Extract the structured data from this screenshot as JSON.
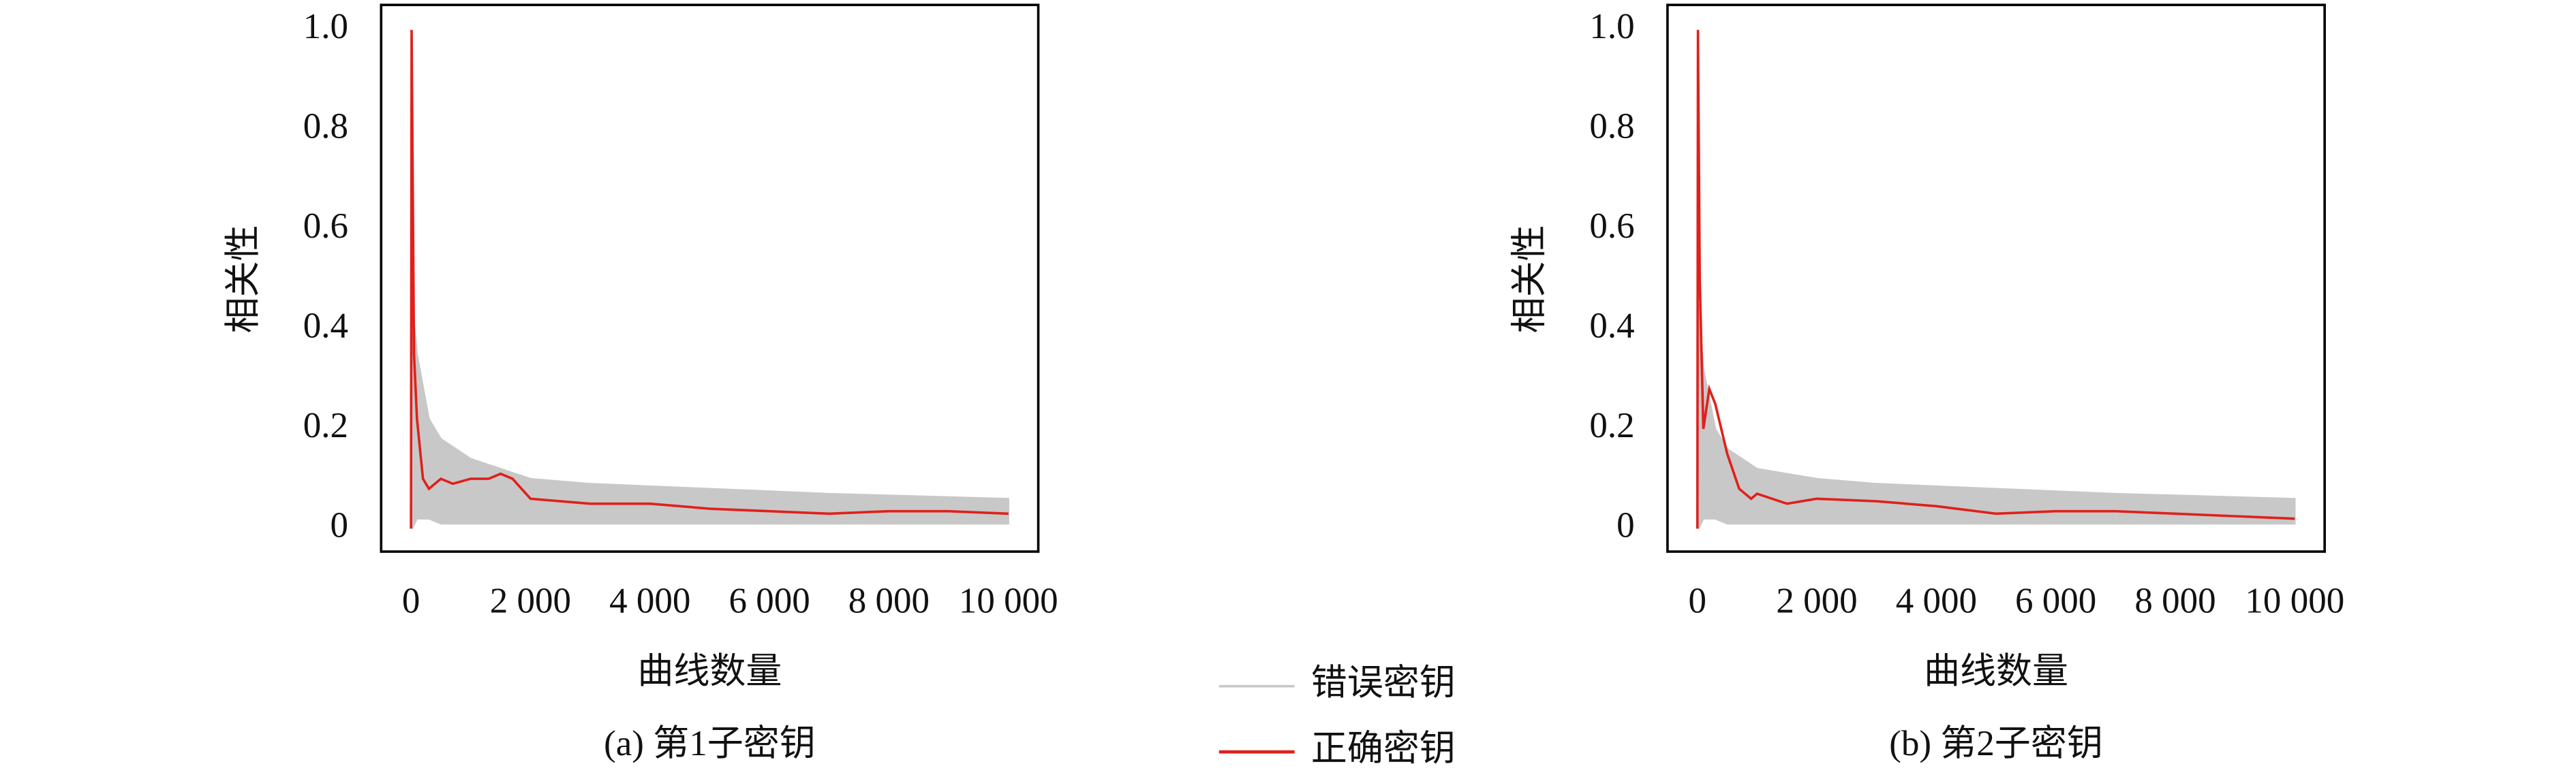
{
  "chart_data": [
    {
      "type": "line",
      "caption": "(a) 第1子密钥",
      "xlabel": "曲线数量",
      "ylabel": "相关性",
      "xlim": [
        -500,
        10500
      ],
      "ylim": [
        -0.046,
        1.05
      ],
      "xticks": [
        0,
        {
          "value": 2000,
          "label": "2 000"
        },
        {
          "value": 4000,
          "label": "4 000"
        },
        {
          "value": 6000,
          "label": "6 000"
        },
        {
          "value": 8000,
          "label": "8 000"
        },
        {
          "value": 10000,
          "label": "10 000"
        }
      ],
      "yticks": [
        0,
        0.2,
        0.4,
        0.6,
        0.8,
        {
          "value": 1,
          "label": "1.0"
        }
      ],
      "series": [
        {
          "name": "错误密钥",
          "color": "#c8c8c8",
          "x": [
            20,
            100,
            300,
            500,
            1000,
            2000,
            3000,
            5000,
            7000,
            10000
          ],
          "values": [
            0.45,
            0.35,
            0.22,
            0.18,
            0.14,
            0.1,
            0.09,
            0.08,
            0.07,
            0.06
          ],
          "lower": [
            0,
            0.02,
            0.02,
            0.01,
            0.01,
            0.01,
            0.01,
            0.01,
            0.01,
            0.01
          ]
        },
        {
          "name": "正确密钥",
          "color": "#e0201b",
          "x": [
            0,
            10,
            50,
            100,
            200,
            300,
            500,
            700,
            1000,
            1300,
            1500,
            1700,
            2000,
            3000,
            4000,
            5000,
            6000,
            7000,
            8000,
            9000,
            10000
          ],
          "values": [
            0,
            1,
            0.35,
            0.22,
            0.1,
            0.08,
            0.1,
            0.09,
            0.1,
            0.1,
            0.11,
            0.1,
            0.06,
            0.05,
            0.05,
            0.04,
            0.035,
            0.03,
            0.035,
            0.035,
            0.03
          ]
        }
      ]
    },
    {
      "type": "line",
      "caption": "(b) 第2子密钥",
      "xlabel": "曲线数量",
      "ylabel": "相关性",
      "xlim": [
        -500,
        10500
      ],
      "ylim": [
        -0.046,
        1.05
      ],
      "xticks": [
        0,
        {
          "value": 2000,
          "label": "2 000"
        },
        {
          "value": 4000,
          "label": "4 000"
        },
        {
          "value": 6000,
          "label": "6 000"
        },
        {
          "value": 8000,
          "label": "8 000"
        },
        {
          "value": 10000,
          "label": "10 000"
        }
      ],
      "yticks": [
        0,
        0.2,
        0.4,
        0.6,
        0.8,
        {
          "value": 1,
          "label": "1.0"
        }
      ],
      "series": [
        {
          "color": "#c8c8c8",
          "x": [
            20,
            100,
            300,
            500,
            1000,
            2000,
            3000,
            5000,
            7000,
            10000
          ],
          "values": [
            0.45,
            0.32,
            0.2,
            0.16,
            0.12,
            0.1,
            0.09,
            0.08,
            0.07,
            0.06
          ],
          "lower": [
            0,
            0.02,
            0.02,
            0.01,
            0.01,
            0.01,
            0.01,
            0.01,
            0.01,
            0.01
          ]
        },
        {
          "color": "#e0201b",
          "x": [
            0,
            10,
            40,
            100,
            200,
            300,
            500,
            700,
            900,
            1000,
            1500,
            2000,
            3000,
            4000,
            5000,
            6000,
            7000,
            8000,
            9000,
            10000
          ],
          "values": [
            0,
            1,
            0.5,
            0.2,
            0.28,
            0.25,
            0.15,
            0.08,
            0.06,
            0.07,
            0.05,
            0.06,
            0.055,
            0.045,
            0.03,
            0.035,
            0.035,
            0.03,
            0.025,
            0.02
          ]
        }
      ]
    }
  ]
}
